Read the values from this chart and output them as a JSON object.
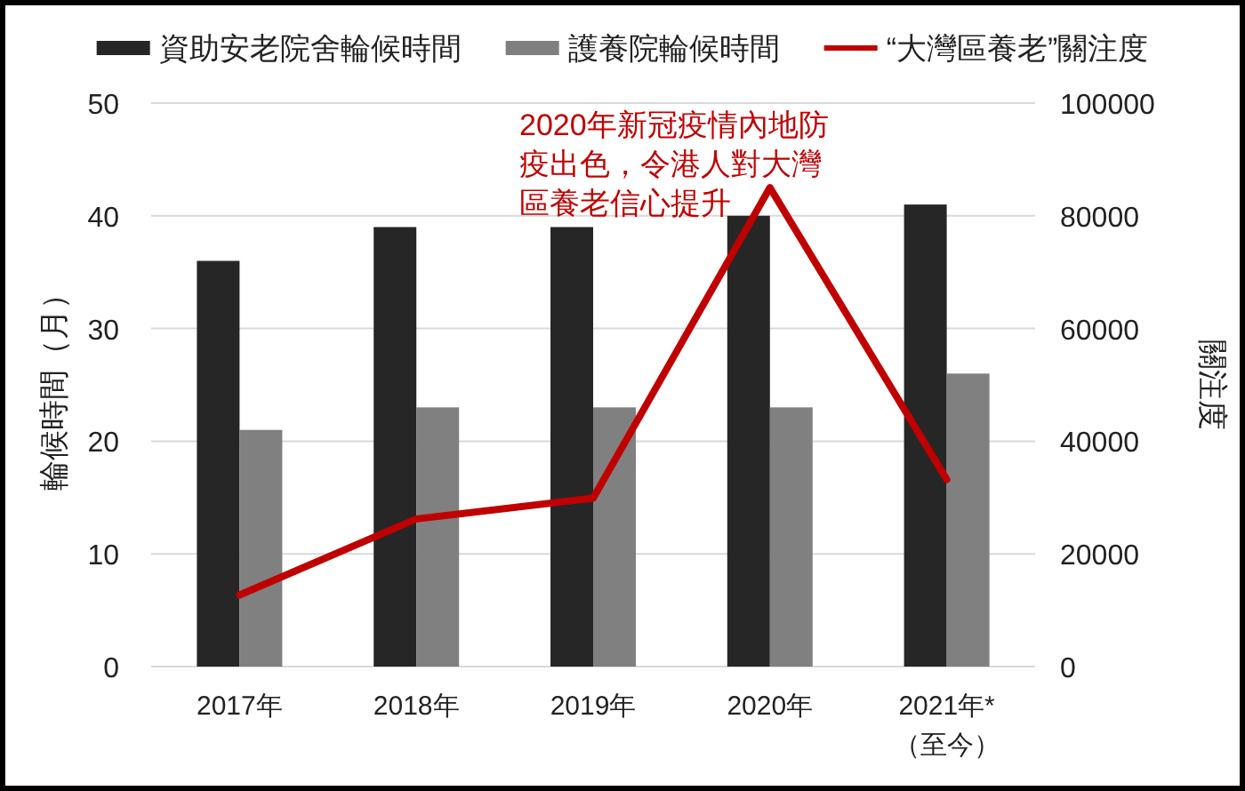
{
  "chart_data": {
    "type": "bar",
    "categories": [
      "2017年",
      "2018年",
      "2019年",
      "2020年",
      "2021年*\n（至今）"
    ],
    "series": [
      {
        "name": "資助安老院舍輪候時間",
        "color": "#262626",
        "values": [
          36,
          39,
          39,
          40,
          41
        ]
      },
      {
        "name": "護養院輪候時間",
        "color": "#808080",
        "values": [
          21,
          23,
          23,
          23,
          26
        ]
      },
      {
        "name": "“大灣區養老”關注度",
        "color": "#c00000",
        "type": "line",
        "axis": "y2",
        "values": [
          12700,
          26200,
          29900,
          85000,
          33200
        ]
      }
    ],
    "ylabel": "輪候時間（月）",
    "y2label": "關注度",
    "ylim": [
      0,
      50
    ],
    "yticks": [
      0,
      10,
      20,
      30,
      40,
      50
    ],
    "y2lim": [
      0,
      100000
    ],
    "y2ticks": [
      0,
      20000,
      40000,
      60000,
      80000,
      100000
    ],
    "grid": "y",
    "legend": "top",
    "annotations": [
      "2020年新冠疫情內地防疫出色，令港人對大灣區養老信心提升"
    ]
  }
}
